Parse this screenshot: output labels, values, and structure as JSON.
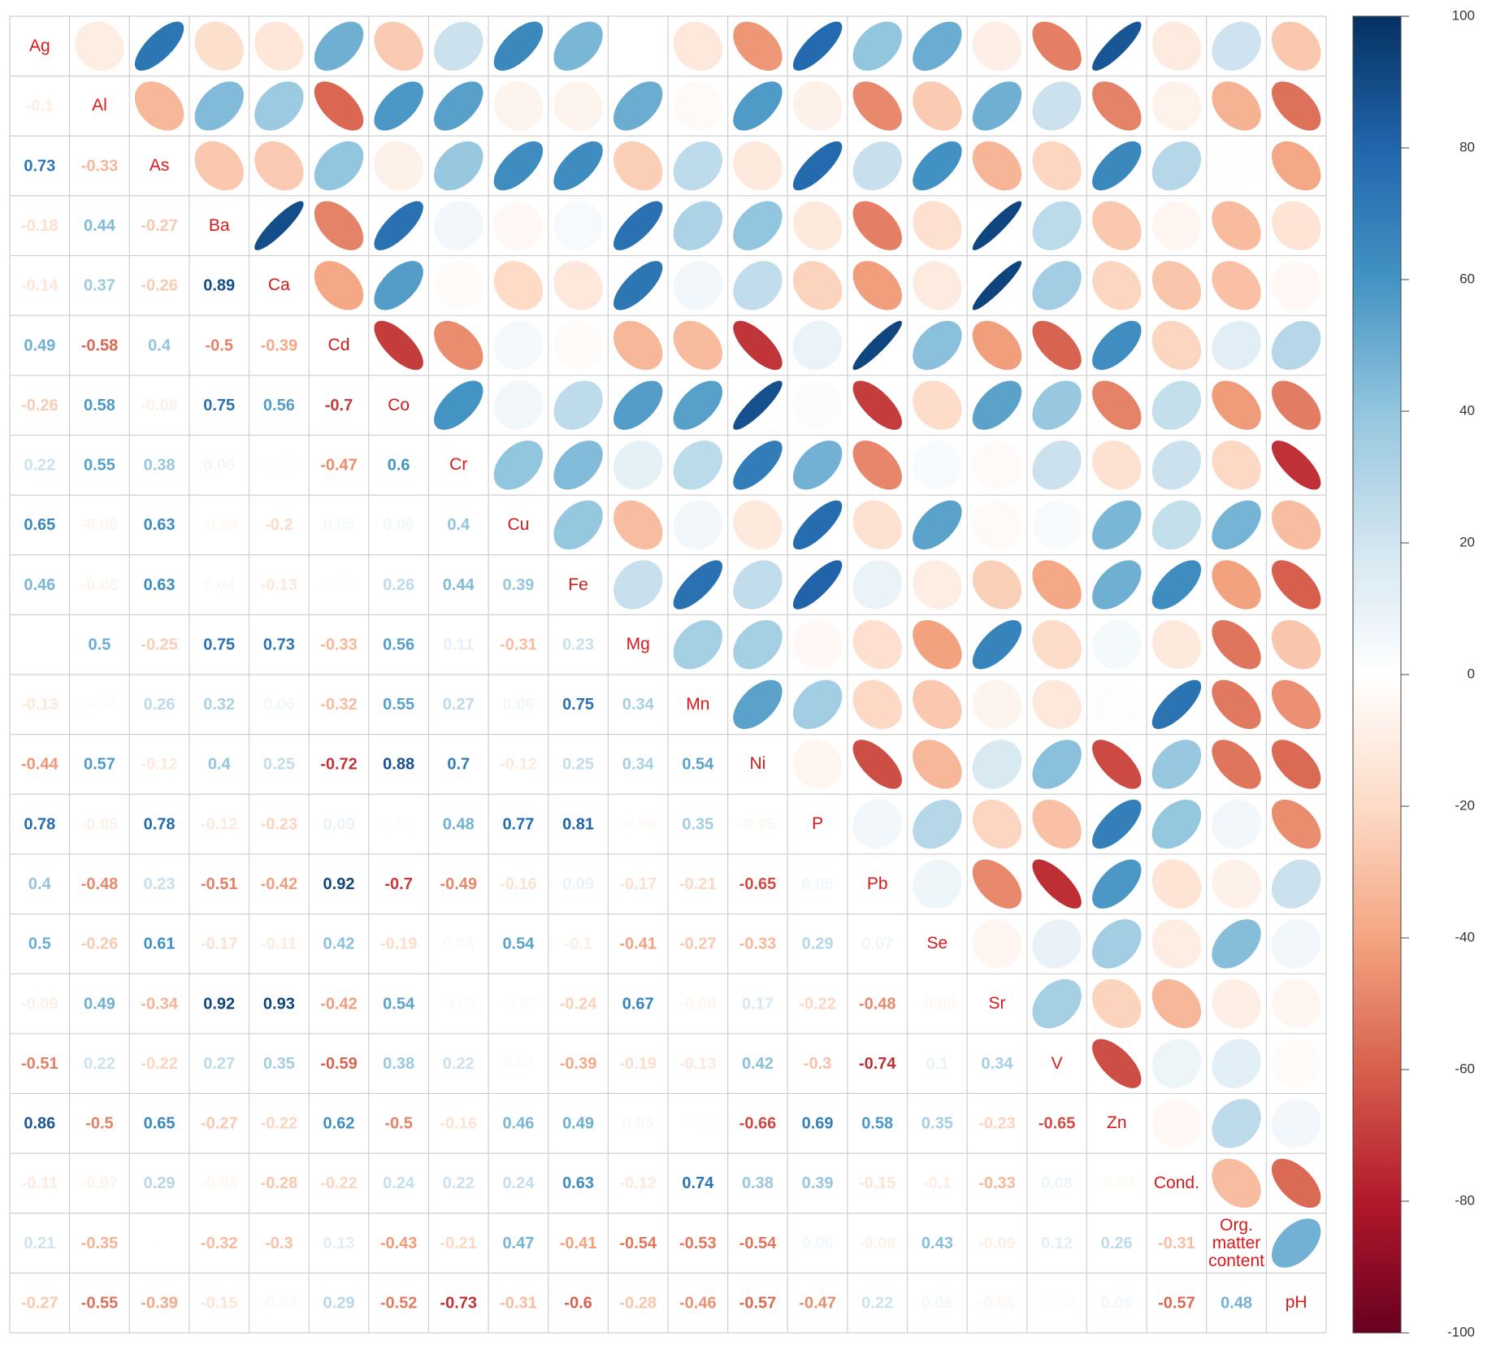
{
  "chart_data": {
    "type": "corrplot",
    "variables": [
      "Ag",
      "Al",
      "As",
      "Ba",
      "Ca",
      "Cd",
      "Co",
      "Cr",
      "Cu",
      "Fe",
      "Mg",
      "Mn",
      "Ni",
      "P",
      "Pb",
      "Se",
      "Sr",
      "V",
      "Zn",
      "Cond.",
      "Org. matter content",
      "pH"
    ],
    "lower": [
      [],
      [
        -0.1
      ],
      [
        0.73,
        -0.33
      ],
      [
        -0.18,
        0.44,
        -0.27
      ],
      [
        -0.14,
        0.37,
        -0.26,
        0.89
      ],
      [
        0.49,
        -0.58,
        0.4,
        -0.5,
        -0.39
      ],
      [
        -0.26,
        0.58,
        -0.08,
        0.75,
        0.56,
        -0.7
      ],
      [
        0.22,
        0.55,
        0.38,
        0.06,
        -0.02,
        -0.47,
        0.6
      ],
      [
        0.65,
        -0.06,
        0.63,
        -0.04,
        -0.2,
        0.05,
        0.06,
        0.4
      ],
      [
        0.46,
        -0.06,
        0.63,
        0.04,
        -0.13,
        -0.02,
        0.26,
        0.44,
        0.39
      ],
      [
        0,
        0.5,
        -0.25,
        0.75,
        0.73,
        -0.33,
        0.56,
        0.11,
        -0.31,
        0.23
      ],
      [
        -0.13,
        -0.03,
        0.26,
        0.32,
        0.06,
        -0.32,
        0.55,
        0.27,
        0.06,
        0.75,
        0.34
      ],
      [
        -0.44,
        0.57,
        -0.12,
        0.4,
        0.25,
        -0.72,
        0.88,
        0.7,
        -0.12,
        0.25,
        0.34,
        0.54
      ],
      [
        0.78,
        -0.08,
        0.78,
        -0.12,
        -0.23,
        0.09,
        0.02,
        0.48,
        0.77,
        0.81,
        -0.04,
        0.35,
        -0.05
      ],
      [
        0.4,
        -0.48,
        0.23,
        -0.51,
        -0.42,
        0.92,
        -0.7,
        -0.49,
        -0.16,
        0.09,
        -0.17,
        -0.21,
        -0.65,
        0.06
      ],
      [
        0.5,
        -0.26,
        0.61,
        -0.17,
        -0.11,
        0.42,
        -0.19,
        0.03,
        0.54,
        -0.1,
        -0.41,
        -0.27,
        -0.33,
        0.29,
        0.07
      ],
      [
        -0.09,
        0.49,
        -0.34,
        0.92,
        0.93,
        -0.42,
        0.54,
        -0.03,
        -0.03,
        -0.24,
        0.67,
        -0.06,
        0.17,
        -0.22,
        -0.48,
        -0.05
      ],
      [
        -0.51,
        0.22,
        -0.22,
        0.27,
        0.35,
        -0.59,
        0.38,
        0.22,
        0.03,
        -0.39,
        -0.19,
        -0.13,
        0.42,
        -0.3,
        -0.74,
        0.1,
        0.34
      ],
      [
        0.86,
        -0.5,
        0.65,
        -0.27,
        -0.22,
        0.62,
        -0.5,
        -0.16,
        0.46,
        0.49,
        0.05,
        -0.01,
        -0.66,
        0.69,
        0.58,
        0.35,
        -0.23,
        -0.65
      ],
      [
        -0.11,
        -0.07,
        0.29,
        -0.05,
        -0.28,
        -0.22,
        0.24,
        0.22,
        0.24,
        0.63,
        -0.12,
        0.74,
        0.38,
        0.39,
        -0.15,
        -0.1,
        -0.33,
        0.08,
        -0.04
      ],
      [
        0.21,
        -0.35,
        0.01,
        -0.32,
        -0.3,
        0.13,
        -0.43,
        -0.21,
        0.47,
        -0.41,
        -0.54,
        -0.53,
        -0.54,
        0.06,
        -0.08,
        0.43,
        -0.09,
        0.12,
        0.26,
        -0.31
      ],
      [
        -0.27,
        -0.55,
        -0.39,
        -0.15,
        -0.04,
        0.29,
        -0.52,
        -0.73,
        -0.31,
        -0.6,
        -0.28,
        -0.46,
        -0.57,
        -0.47,
        0.22,
        0.06,
        -0.05,
        -0.02,
        0.06,
        -0.57,
        0.48
      ]
    ],
    "colorbar_lim": [
      -100,
      100
    ],
    "colorbar_ticks": [
      -100,
      -80,
      -60,
      -40,
      -20,
      0,
      20,
      40,
      60,
      80,
      100
    ]
  }
}
